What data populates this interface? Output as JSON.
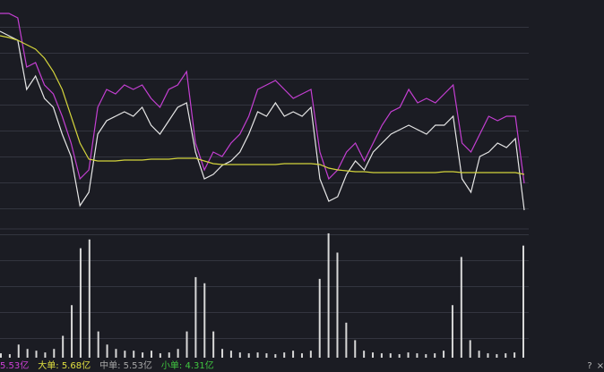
{
  "chart_data": [
    {
      "type": "line",
      "ylim": [
        0,
        255
      ],
      "categories": [
        null,
        null,
        null,
        null,
        null,
        null,
        null,
        null,
        null,
        null,
        null,
        null,
        null,
        null,
        null,
        null,
        null,
        null,
        null,
        null,
        null,
        null,
        null,
        null,
        null,
        null,
        null,
        null,
        null,
        null,
        null,
        null,
        null,
        null,
        null,
        null,
        null,
        null,
        null,
        null,
        null,
        null,
        null,
        null,
        null,
        null,
        null,
        null,
        null,
        null,
        null,
        null,
        null,
        null,
        null,
        null,
        null,
        null,
        null,
        null
      ],
      "series": [
        {
          "color": "#c43fd2",
          "values": [
            240,
            240,
            235,
            180,
            185,
            160,
            150,
            125,
            95,
            55,
            65,
            135,
            155,
            150,
            160,
            155,
            160,
            145,
            135,
            155,
            160,
            175,
            95,
            65,
            85,
            80,
            95,
            105,
            125,
            155,
            160,
            165,
            155,
            145,
            150,
            155,
            85,
            55,
            65,
            85,
            95,
            75,
            95,
            115,
            130,
            135,
            155,
            140,
            145,
            140,
            150,
            160,
            95,
            85,
            105,
            125,
            120,
            125,
            125,
            50
          ]
        },
        {
          "color": "#e6e6e6",
          "values": [
            220,
            215,
            210,
            155,
            170,
            145,
            135,
            105,
            80,
            25,
            40,
            105,
            120,
            125,
            130,
            125,
            135,
            115,
            105,
            120,
            135,
            140,
            85,
            55,
            60,
            70,
            75,
            85,
            105,
            130,
            125,
            140,
            125,
            130,
            125,
            135,
            55,
            30,
            35,
            60,
            75,
            65,
            85,
            95,
            105,
            110,
            115,
            110,
            105,
            115,
            115,
            125,
            55,
            40,
            80,
            85,
            95,
            90,
            100,
            20
          ]
        },
        {
          "color": "#d4d43c",
          "values": [
            215,
            213,
            210,
            205,
            200,
            190,
            175,
            155,
            125,
            95,
            77,
            75,
            75,
            75,
            76,
            76,
            76,
            77,
            77,
            77,
            78,
            78,
            78,
            75,
            72,
            71,
            71,
            71,
            71,
            71,
            71,
            71,
            72,
            72,
            72,
            72,
            71,
            67,
            65,
            64,
            63,
            63,
            62,
            62,
            62,
            62,
            62,
            62,
            62,
            62,
            63,
            63,
            62,
            62,
            62,
            62,
            62,
            62,
            62,
            60
          ]
        }
      ]
    },
    {
      "type": "bar",
      "ylim": [
        0,
        145
      ],
      "color": "#d8d8d8",
      "categories": [
        null,
        null,
        null,
        null,
        null,
        null,
        null,
        null,
        null,
        null,
        null,
        null,
        null,
        null,
        null,
        null,
        null,
        null,
        null,
        null,
        null,
        null,
        null,
        null,
        null,
        null,
        null,
        null,
        null,
        null,
        null,
        null,
        null,
        null,
        null,
        null,
        null,
        null,
        null,
        null,
        null,
        null,
        null,
        null,
        null,
        null,
        null,
        null,
        null,
        null,
        null,
        null,
        null,
        null,
        null,
        null,
        null,
        null,
        null,
        null
      ],
      "values": [
        5,
        4,
        15,
        10,
        8,
        6,
        10,
        25,
        60,
        125,
        135,
        30,
        15,
        10,
        8,
        8,
        6,
        8,
        5,
        6,
        10,
        30,
        92,
        85,
        30,
        10,
        8,
        6,
        5,
        6,
        5,
        4,
        6,
        8,
        5,
        8,
        90,
        142,
        120,
        40,
        20,
        8,
        6,
        5,
        5,
        4,
        6,
        5,
        4,
        5,
        8,
        60,
        115,
        20,
        8,
        5,
        4,
        5,
        6,
        128
      ]
    }
  ],
  "status": {
    "items": [
      {
        "text": "5.53亿",
        "color": "#d040d8"
      },
      {
        "text": "大单: 5.68亿",
        "color": "#e0e040"
      },
      {
        "text": "中单: 5.53亿",
        "color": "#a8a8a8"
      },
      {
        "text": "小单: 4.31亿",
        "color": "#40c840"
      }
    ],
    "help": "?",
    "close": "×"
  }
}
